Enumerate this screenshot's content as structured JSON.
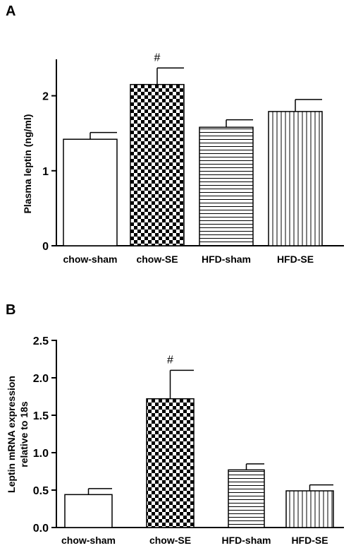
{
  "chart_data": [
    {
      "type": "bar",
      "panel": "A",
      "categories": [
        "chow-sham",
        "chow-SE",
        "HFD-sham",
        "HFD-SE"
      ],
      "values": [
        1.42,
        2.15,
        1.58,
        1.79
      ],
      "errors": [
        0.09,
        0.22,
        0.1,
        0.16
      ],
      "patterns": [
        "none",
        "checker",
        "horizontal",
        "vertical"
      ],
      "annotations": [
        "",
        "#",
        "",
        ""
      ],
      "ylabel": "Plasma leptin (ng/ml)",
      "ylim": [
        0,
        2.5
      ],
      "yticks": [
        "0",
        "1",
        "2"
      ],
      "ytick_values": [
        0,
        1,
        2
      ],
      "grid": false
    },
    {
      "type": "bar",
      "panel": "B",
      "categories": [
        "chow-sham",
        "chow-SE",
        "HFD-sham",
        "HFD-SE"
      ],
      "values": [
        0.44,
        1.72,
        0.77,
        0.49
      ],
      "errors": [
        0.08,
        0.38,
        0.08,
        0.08
      ],
      "patterns": [
        "none",
        "checker",
        "horizontal",
        "vertical"
      ],
      "annotations": [
        "",
        "#",
        "",
        ""
      ],
      "ylabel_lines": [
        "Leptin mRNA expression",
        "relative to 18s"
      ],
      "ylim": [
        0,
        2.5
      ],
      "yticks": [
        "0.0",
        "0.5",
        "1.0",
        "1.5",
        "2.0",
        "2.5"
      ],
      "ytick_values": [
        0,
        0.5,
        1.0,
        1.5,
        2.0,
        2.5
      ],
      "grid": false
    }
  ]
}
